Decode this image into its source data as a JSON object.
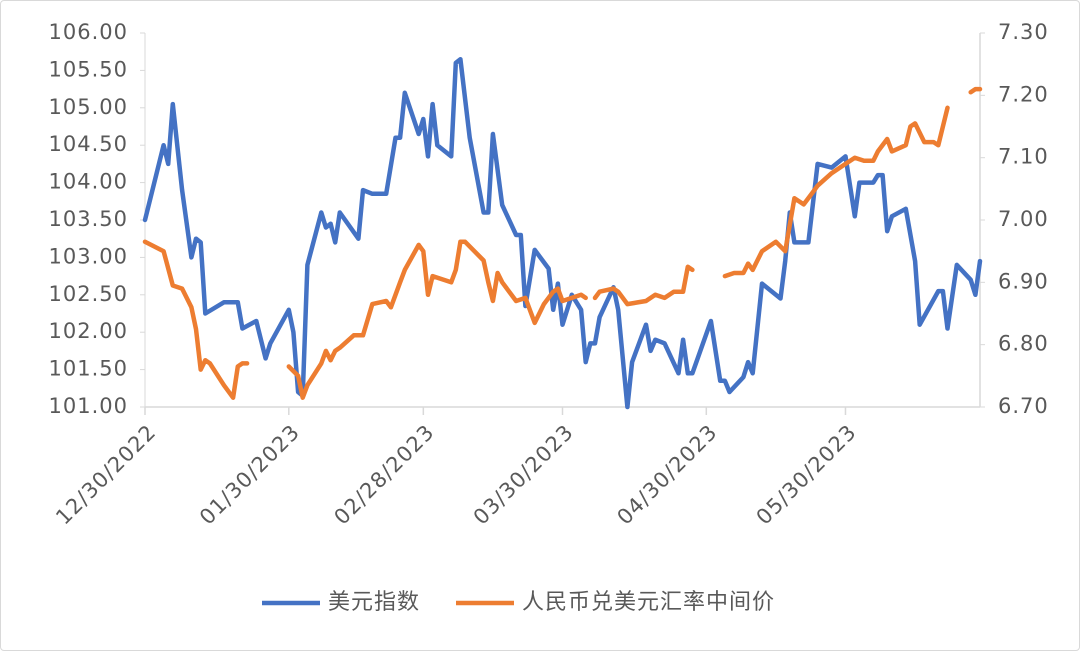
{
  "chart_data": {
    "type": "line",
    "xlim": [
      "12/30/2022",
      "06/28/2023"
    ],
    "xticks": [
      "12/30/2022",
      "01/30/2023",
      "02/28/2023",
      "03/30/2023",
      "04/30/2023",
      "05/30/2023"
    ],
    "ylim": [
      101,
      106
    ],
    "yticks": [
      {
        "value": 101,
        "label": "101.00"
      },
      {
        "value": 101.5,
        "label": "101.50"
      },
      {
        "value": 102,
        "label": "102.00"
      },
      {
        "value": 102.5,
        "label": "102.50"
      },
      {
        "value": 103,
        "label": "103.00"
      },
      {
        "value": 103.5,
        "label": "103.50"
      },
      {
        "value": 104,
        "label": "104.00"
      },
      {
        "value": 104.5,
        "label": "104.50"
      },
      {
        "value": 105,
        "label": "105.00"
      },
      {
        "value": 105.5,
        "label": "105.50"
      },
      {
        "value": 106,
        "label": "106.00"
      }
    ],
    "y2lim": [
      6.7,
      7.3
    ],
    "y2ticks": [
      {
        "value": 6.7,
        "label": "6.70"
      },
      {
        "value": 6.8,
        "label": "6.80"
      },
      {
        "value": 6.9,
        "label": "6.90"
      },
      {
        "value": 7.0,
        "label": "7.00"
      },
      {
        "value": 7.1,
        "label": "7.10"
      },
      {
        "value": 7.2,
        "label": "7.20"
      },
      {
        "value": 7.3,
        "label": "7.30"
      }
    ],
    "legend": "bottom",
    "series": [
      {
        "name": "美元指数",
        "color": "#4472c4",
        "x": [
          "12/30/2022",
          "01/03/2023",
          "01/04/2023",
          "01/05/2023",
          "01/07/2023",
          "01/09/2023",
          "01/10/2023",
          "01/11/2023",
          "01/12/2023",
          "01/16/2023",
          "01/19/2023",
          "01/20/2023",
          "01/23/2023",
          "01/25/2023",
          "01/26/2023",
          "01/30/2023",
          "01/31/2023",
          "02/01/2023",
          "02/02/2023",
          "02/03/2023",
          "02/06/2023",
          "02/07/2023",
          "02/08/2023",
          "02/09/2023",
          "02/10/2023",
          "02/14/2023",
          "02/15/2023",
          "02/17/2023",
          "02/20/2023",
          "02/22/2023",
          "02/23/2023",
          "02/24/2023",
          "02/27/2023",
          "02/28/2023",
          "03/01/2023",
          "03/02/2023",
          "03/03/2023",
          "03/06/2023",
          "03/07/2023",
          "03/08/2023",
          "03/10/2023",
          "03/13/2023",
          "03/14/2023",
          "03/15/2023",
          "03/17/2023",
          "03/20/2023",
          "03/21/2023",
          "03/22/2023",
          "03/24/2023",
          "03/27/2023",
          "03/28/2023",
          "03/29/2023",
          "03/30/2023",
          "04/01/2023",
          "04/03/2023",
          "04/04/2023",
          "04/05/2023",
          "04/06/2023",
          "04/07/2023",
          "04/10/2023",
          "04/11/2023",
          "04/13/2023",
          "04/14/2023",
          "04/17/2023",
          "04/18/2023",
          "04/19/2023",
          "04/21/2023",
          "04/24/2023",
          "04/25/2023",
          "04/26/2023",
          "04/27/2023",
          "05/01/2023",
          "05/03/2023",
          "05/04/2023",
          "05/05/2023",
          "05/08/2023",
          "05/09/2023",
          "05/10/2023",
          "05/12/2023",
          "05/16/2023",
          "05/17/2023",
          "05/18/2023",
          "05/19/2023",
          "05/22/2023",
          "05/24/2023",
          "05/27/2023",
          "05/30/2023",
          "06/01/2023",
          "06/02/2023",
          "06/05/2023",
          "06/06/2023",
          "06/07/2023",
          "06/08/2023",
          "06/09/2023",
          "06/12/2023",
          "06/14/2023",
          "06/15/2023",
          "06/19/2023",
          "06/20/2023",
          "06/21/2023",
          "06/23/2023",
          "06/26/2023",
          "06/27/2023",
          "06/28/2023"
        ],
        "values": [
          103.5,
          104.5,
          104.25,
          105.05,
          103.9,
          103.0,
          103.25,
          103.2,
          102.25,
          102.4,
          102.4,
          102.05,
          102.15,
          101.65,
          101.85,
          102.3,
          102.0,
          101.2,
          101.15,
          102.9,
          103.6,
          103.4,
          103.45,
          103.2,
          103.6,
          103.25,
          103.9,
          103.85,
          103.85,
          104.6,
          104.6,
          105.2,
          104.65,
          104.85,
          104.35,
          105.05,
          104.5,
          104.35,
          105.6,
          105.65,
          104.6,
          103.6,
          103.6,
          104.65,
          103.7,
          103.3,
          103.3,
          102.35,
          103.1,
          102.85,
          102.3,
          102.65,
          102.1,
          102.5,
          102.3,
          101.6,
          101.85,
          101.85,
          102.2,
          102.6,
          102.3,
          101.0,
          101.6,
          102.1,
          101.75,
          101.9,
          101.85,
          101.45,
          101.9,
          101.45,
          101.45,
          102.15,
          101.35,
          101.35,
          101.2,
          101.4,
          101.6,
          101.45,
          102.65,
          102.45,
          102.95,
          103.6,
          103.2,
          103.2,
          104.25,
          104.2,
          104.35,
          103.55,
          104.0,
          104.0,
          104.1,
          104.1,
          103.35,
          103.55,
          103.65,
          102.95,
          102.1,
          102.55,
          102.55,
          102.05,
          102.9,
          102.7,
          102.5,
          102.95
        ]
      },
      {
        "name": "人民币兑美元汇率中间价",
        "color": "#ed7d31",
        "axis": "y2",
        "x": [
          "12/30/2022",
          "01/03/2023",
          "01/05/2023",
          "01/07/2023",
          "01/09/2023",
          "01/10/2023",
          "01/11/2023",
          "01/12/2023",
          "01/13/2023",
          "01/16/2023",
          "01/18/2023",
          "01/19/2023",
          "01/20/2023",
          "01/21/2023",
          "01/25/2023",
          "01/30/2023",
          "02/01/2023",
          "02/02/2023",
          "02/03/2023",
          "02/06/2023",
          "02/07/2023",
          "02/08/2023",
          "02/09/2023",
          "02/10/2023",
          "02/13/2023",
          "02/15/2023",
          "02/17/2023",
          "02/20/2023",
          "02/21/2023",
          "02/23/2023",
          "02/24/2023",
          "02/27/2023",
          "02/28/2023",
          "03/01/2023",
          "03/02/2023",
          "03/06/2023",
          "03/07/2023",
          "03/08/2023",
          "03/09/2023",
          "03/13/2023",
          "03/14/2023",
          "03/15/2023",
          "03/16/2023",
          "03/17/2023",
          "03/20/2023",
          "03/22/2023",
          "03/24/2023",
          "03/26/2023",
          "03/28/2023",
          "03/29/2023",
          "03/30/2023",
          "04/03/2023",
          "04/04/2023",
          "04/05/2023",
          "04/06/2023",
          "04/07/2023",
          "04/10/2023",
          "04/11/2023",
          "04/13/2023",
          "04/17/2023",
          "04/19/2023",
          "04/21/2023",
          "04/23/2023",
          "04/25/2023",
          "04/26/2023",
          "04/27/2023",
          "05/01/2023",
          "05/04/2023",
          "05/06/2023",
          "05/08/2023",
          "05/09/2023",
          "05/10/2023",
          "05/12/2023",
          "05/15/2023",
          "05/17/2023",
          "05/19/2023",
          "05/21/2023",
          "05/23/2023",
          "05/24/2023",
          "05/27/2023",
          "05/30/2023",
          "06/01/2023",
          "06/03/2023",
          "06/05/2023",
          "06/06/2023",
          "06/08/2023",
          "06/09/2023",
          "06/12/2023",
          "06/13/2023",
          "06/14/2023",
          "06/16/2023",
          "06/18/2023",
          "06/19/2023",
          "06/21/2023",
          "06/23/2023",
          "06/26/2023",
          "06/27/2023",
          "06/28/2023"
        ],
        "values": [
          6.965,
          6.95,
          6.895,
          6.89,
          6.86,
          6.825,
          6.76,
          6.775,
          6.77,
          6.735,
          6.715,
          6.765,
          6.77,
          6.77,
          null,
          6.765,
          6.75,
          6.715,
          6.735,
          6.77,
          6.79,
          6.775,
          6.79,
          6.795,
          6.815,
          6.815,
          6.865,
          6.87,
          6.86,
          6.9,
          6.92,
          6.96,
          6.95,
          6.88,
          6.91,
          6.9,
          6.92,
          6.965,
          6.965,
          6.935,
          6.9,
          6.87,
          6.915,
          6.9,
          6.87,
          6.875,
          6.835,
          6.865,
          6.885,
          6.89,
          6.87,
          6.88,
          6.875,
          null,
          6.875,
          6.885,
          6.89,
          6.885,
          6.865,
          6.87,
          6.88,
          6.875,
          6.885,
          6.885,
          6.925,
          6.92,
          null,
          6.91,
          6.915,
          6.915,
          6.93,
          6.92,
          6.95,
          6.965,
          6.95,
          7.035,
          7.025,
          7.045,
          7.055,
          7.075,
          7.09,
          7.1,
          7.095,
          7.095,
          7.11,
          7.13,
          7.11,
          7.12,
          7.15,
          7.155,
          7.125,
          7.125,
          7.12,
          7.18,
          null,
          7.205,
          7.21,
          7.21
        ]
      }
    ]
  }
}
